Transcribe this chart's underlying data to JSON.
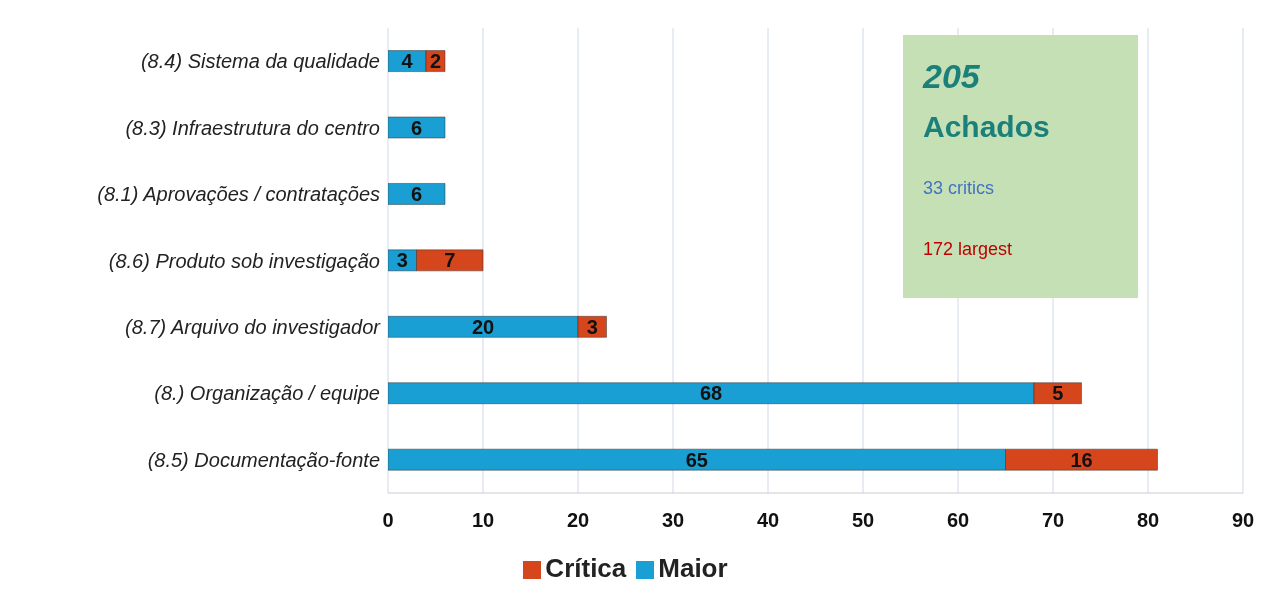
{
  "chart_data": {
    "type": "bar",
    "orientation": "horizontal",
    "stacked": true,
    "categories": [
      "(8.4) Sistema da qualidade",
      "(8.3) Infraestrutura do centro",
      "(8.1) Aprovações / contratações",
      "(8.6) Produto sob investigação",
      "(8.7) Arquivo do investigador",
      "(8.) Organização / equipe",
      "(8.5) Documentação-fonte"
    ],
    "series": [
      {
        "name": "Maior",
        "color": "#1a9fd4",
        "values": [
          4,
          6,
          6,
          3,
          20,
          68,
          65
        ]
      },
      {
        "name": "Crítica",
        "color": "#d6461c",
        "values": [
          2,
          null,
          null,
          7,
          3,
          5,
          16
        ]
      }
    ],
    "xlim": [
      0,
      90
    ],
    "xticks": [
      0,
      10,
      20,
      30,
      40,
      50,
      60,
      70,
      80,
      90
    ],
    "grid": "x",
    "legend": "bottom",
    "data_labels": true,
    "annotations": [
      "205",
      "Achados",
      "33 critics",
      "172 largest"
    ]
  }
}
